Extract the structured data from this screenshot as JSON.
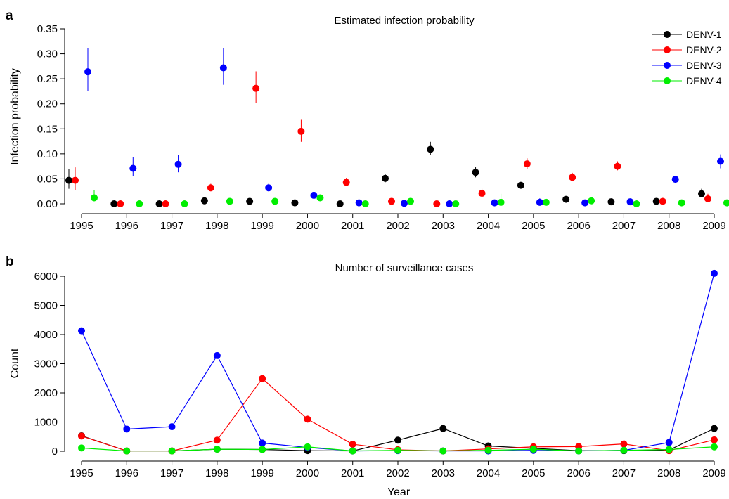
{
  "series_meta": [
    {
      "name": "DENV-1",
      "color": "#000000"
    },
    {
      "name": "DENV-2",
      "color": "#ff0000"
    },
    {
      "name": "DENV-3",
      "color": "#0000ff"
    },
    {
      "name": "DENV-4",
      "color": "#00ee00"
    }
  ],
  "chart_data": [
    {
      "panel_label": "a",
      "type": "scatter",
      "title": "Estimated infection probability",
      "ylabel": "Infection probability",
      "xlabel": "",
      "ylim": [
        0,
        0.35
      ],
      "yticks": [
        "0.00",
        "0.05",
        "0.10",
        "0.15",
        "0.20",
        "0.25",
        "0.30",
        "0.35"
      ],
      "categories": [
        "1995",
        "1996",
        "1997",
        "1998",
        "1999",
        "2000",
        "2001",
        "2002",
        "2003",
        "2004",
        "2005",
        "2006",
        "2007",
        "2008",
        "2009"
      ],
      "legend_position": "top-right",
      "grid": false,
      "series": [
        {
          "name": "DENV-1",
          "values": [
            0.047,
            0.0,
            0.0,
            0.006,
            0.005,
            0.002,
            0.0,
            0.051,
            0.109,
            0.063,
            0.037,
            0.009,
            0.004,
            0.005,
            0.02
          ],
          "lower": [
            0.03,
            0.0,
            0.0,
            0.004,
            0.003,
            0.001,
            0.0,
            0.043,
            0.098,
            0.053,
            0.033,
            0.007,
            0.003,
            0.004,
            0.013
          ],
          "upper": [
            0.07,
            0.0,
            0.0,
            0.008,
            0.007,
            0.003,
            0.0,
            0.06,
            0.124,
            0.073,
            0.041,
            0.011,
            0.005,
            0.006,
            0.03
          ]
        },
        {
          "name": "DENV-2",
          "values": [
            0.047,
            0.0,
            0.0,
            0.032,
            0.231,
            0.145,
            0.043,
            0.005,
            0.0,
            0.021,
            0.08,
            0.053,
            0.075,
            0.005,
            0.01
          ],
          "lower": [
            0.027,
            0.0,
            0.0,
            0.025,
            0.202,
            0.124,
            0.036,
            0.003,
            0.0,
            0.014,
            0.07,
            0.046,
            0.067,
            0.004,
            0.004
          ],
          "upper": [
            0.073,
            0.0,
            0.0,
            0.04,
            0.265,
            0.168,
            0.052,
            0.007,
            0.0,
            0.03,
            0.091,
            0.062,
            0.085,
            0.006,
            0.02
          ]
        },
        {
          "name": "DENV-3",
          "values": [
            0.264,
            0.071,
            0.079,
            0.272,
            0.032,
            0.017,
            0.002,
            0.001,
            0.0,
            0.002,
            0.003,
            0.002,
            0.004,
            0.049,
            0.085
          ],
          "lower": [
            0.225,
            0.055,
            0.063,
            0.238,
            0.025,
            0.013,
            0.0,
            0.0,
            0.0,
            0.0,
            0.0,
            0.0,
            0.002,
            0.043,
            0.071
          ],
          "upper": [
            0.312,
            0.093,
            0.097,
            0.312,
            0.04,
            0.022,
            0.004,
            0.002,
            0.0,
            0.004,
            0.011,
            0.004,
            0.006,
            0.056,
            0.099
          ]
        },
        {
          "name": "DENV-4",
          "values": [
            0.012,
            0.0,
            0.0,
            0.005,
            0.005,
            0.012,
            0.0,
            0.005,
            0.0,
            0.003,
            0.003,
            0.006,
            0.0,
            0.002,
            0.002
          ],
          "lower": [
            0.005,
            0.0,
            0.0,
            0.003,
            0.003,
            0.009,
            0.0,
            0.003,
            0.0,
            0.0,
            0.0,
            0.003,
            0.0,
            0.001,
            0.001
          ],
          "upper": [
            0.027,
            0.0,
            0.0,
            0.007,
            0.007,
            0.016,
            0.0,
            0.007,
            0.0,
            0.02,
            0.01,
            0.009,
            0.0,
            0.003,
            0.003
          ]
        }
      ]
    },
    {
      "panel_label": "b",
      "type": "line",
      "title": "Number of surveillance cases",
      "ylabel": "Count",
      "xlabel": "Year",
      "ylim": [
        0,
        6000
      ],
      "yticks": [
        "0",
        "1000",
        "2000",
        "3000",
        "4000",
        "5000",
        "6000"
      ],
      "categories": [
        "1995",
        "1996",
        "1997",
        "1998",
        "1999",
        "2000",
        "2001",
        "2002",
        "2003",
        "2004",
        "2005",
        "2006",
        "2007",
        "2008",
        "2009"
      ],
      "grid": false,
      "series": [
        {
          "name": "DENV-1",
          "values": [
            530,
            10,
            10,
            70,
            60,
            20,
            10,
            380,
            780,
            180,
            100,
            20,
            20,
            40,
            780
          ]
        },
        {
          "name": "DENV-2",
          "values": [
            520,
            10,
            10,
            380,
            2490,
            1100,
            240,
            50,
            10,
            80,
            150,
            160,
            250,
            20,
            390
          ]
        },
        {
          "name": "DENV-3",
          "values": [
            4130,
            760,
            840,
            3280,
            280,
            130,
            10,
            20,
            10,
            10,
            30,
            10,
            30,
            300,
            6100
          ]
        },
        {
          "name": "DENV-4",
          "values": [
            110,
            10,
            10,
            70,
            60,
            150,
            10,
            30,
            10,
            30,
            70,
            10,
            30,
            60,
            150
          ]
        }
      ]
    }
  ]
}
